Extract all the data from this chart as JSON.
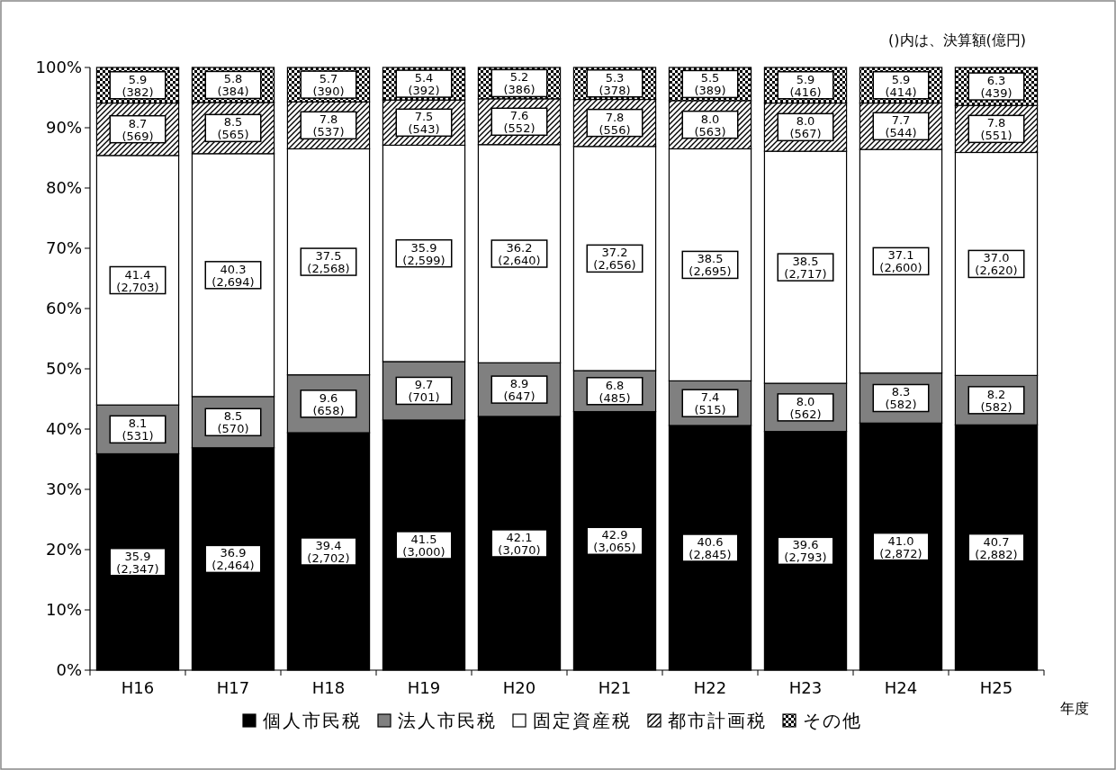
{
  "chart_data": {
    "type": "bar",
    "stacked": true,
    "categories": [
      "H16",
      "H17",
      "H18",
      "H19",
      "H20",
      "H21",
      "H22",
      "H23",
      "H24",
      "H25"
    ],
    "xlabel": "年度",
    "annotations": [
      "()内は、決算額(億円)"
    ],
    "ylim": [
      0,
      100
    ],
    "yticks": [
      {
        "value": 0,
        "label": "0%"
      },
      {
        "value": 10,
        "label": "10%"
      },
      {
        "value": 20,
        "label": "20%"
      },
      {
        "value": 30,
        "label": "30%"
      },
      {
        "value": 40,
        "label": "40%"
      },
      {
        "value": 50,
        "label": "50%"
      },
      {
        "value": 60,
        "label": "60%"
      },
      {
        "value": 70,
        "label": "70%"
      },
      {
        "value": 80,
        "label": "80%"
      },
      {
        "value": 90,
        "label": "90%"
      },
      {
        "value": 100,
        "label": "100%"
      }
    ],
    "grid": false,
    "legend": "bottom",
    "series": [
      {
        "name": "個人市民税",
        "color": "#000000",
        "values": [
          35.9,
          36.9,
          39.4,
          41.5,
          42.1,
          42.9,
          40.6,
          39.6,
          41.0,
          40.7
        ],
        "value_labels": [
          "35.9\n(2,347)",
          "36.9\n(2,464)",
          "39.4\n(2,702)",
          "41.5\n(3,000)",
          "42.1\n(3,070)",
          "42.9\n(3,065)",
          "40.6\n(2,845)",
          "39.6\n(2,793)",
          "41.0\n(2,872)",
          "40.7\n(2,882)"
        ]
      },
      {
        "name": "法人市民税",
        "color": "#808080",
        "values": [
          8.1,
          8.5,
          9.6,
          9.7,
          8.9,
          6.8,
          7.4,
          8.0,
          8.3,
          8.2
        ],
        "value_labels": [
          "8.1\n(531)",
          "8.5\n(570)",
          "9.6\n(658)",
          "9.7\n(701)",
          "8.9\n(647)",
          "6.8\n(485)",
          "7.4\n(515)",
          "8.0\n(562)",
          "8.3\n(582)",
          "8.2\n(582)"
        ]
      },
      {
        "name": "固定資産税",
        "color": "#ffffff",
        "values": [
          41.4,
          40.3,
          37.5,
          35.9,
          36.2,
          37.2,
          38.5,
          38.5,
          37.1,
          37.0
        ],
        "value_labels": [
          "41.4\n(2,703)",
          "40.3\n(2,694)",
          "37.5\n(2,568)",
          "35.9\n(2,599)",
          "36.2\n(2,640)",
          "37.2\n(2,656)",
          "38.5\n(2,695)",
          "38.5\n(2,717)",
          "37.1\n(2,600)",
          "37.0\n(2,620)"
        ]
      },
      {
        "name": "都市計画税",
        "color": "#000000",
        "values": [
          8.7,
          8.5,
          7.8,
          7.5,
          7.6,
          7.8,
          8.0,
          8.0,
          7.7,
          7.8
        ],
        "value_labels": [
          "8.7\n(569)",
          "8.5\n(565)",
          "7.8\n(537)",
          "7.5\n(543)",
          "7.6\n(552)",
          "7.8\n(556)",
          "8.0\n(563)",
          "8.0\n(567)",
          "7.7\n(544)",
          "7.8\n(551)"
        ]
      },
      {
        "name": "その他",
        "color": "#000000",
        "values": [
          5.9,
          5.8,
          5.7,
          5.4,
          5.2,
          5.3,
          5.5,
          5.9,
          5.9,
          6.3
        ],
        "value_labels": [
          "5.9\n(382)",
          "5.8\n(384)",
          "5.7\n(390)",
          "5.4\n(392)",
          "5.2\n(386)",
          "5.3\n(378)",
          "5.5\n(389)",
          "5.9\n(416)",
          "5.9\n(414)",
          "6.3\n(439)"
        ]
      }
    ]
  }
}
